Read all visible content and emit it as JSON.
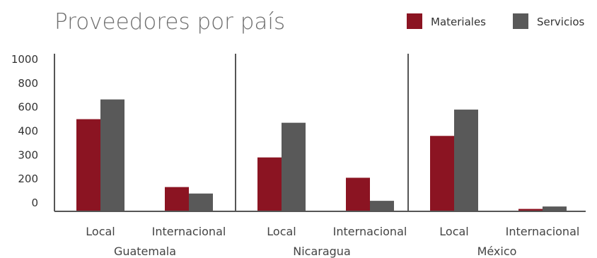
{
  "chart_data": {
    "type": "bar",
    "title": "Proveedores por país",
    "groups": [
      "Guatemala",
      "Nicaragua",
      "México"
    ],
    "categories": [
      "Local",
      "Internacional",
      "Local",
      "Internacional",
      "Local",
      "Internacional"
    ],
    "y_tick_labels": [
      "0",
      "200",
      "300",
      "400",
      "600",
      "800",
      "1000"
    ],
    "ylim": [
      0,
      1000
    ],
    "series": [
      {
        "name": "Materiales",
        "color": "#8b1422",
        "values": [
          500,
          150,
          290,
          205,
          380,
          15
        ]
      },
      {
        "name": "Servicios",
        "color": "#595959",
        "values": [
          665,
          110,
          470,
          65,
          580,
          30
        ]
      }
    ],
    "legend_position": "top-right",
    "grid": false
  }
}
